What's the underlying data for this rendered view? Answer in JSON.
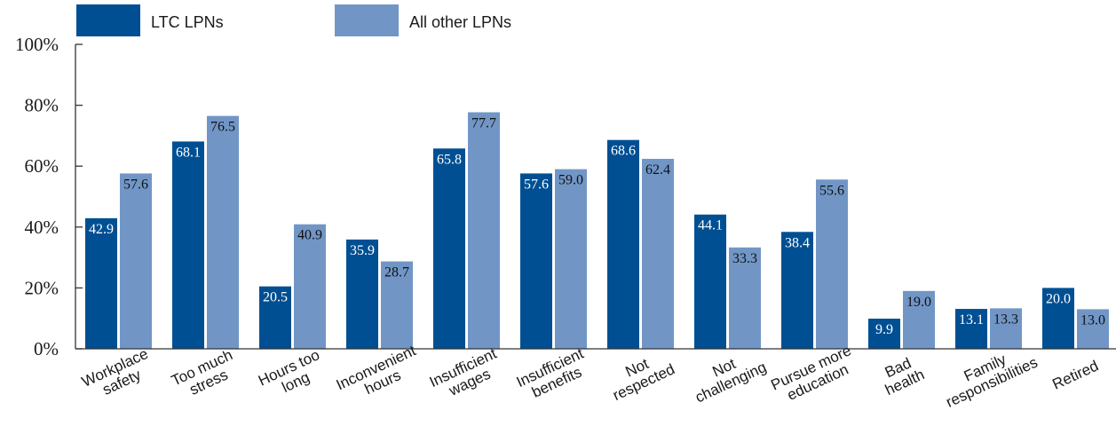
{
  "chart_data": {
    "type": "bar",
    "categories": [
      [
        "Workplace",
        "safety"
      ],
      [
        "Too much",
        "stress"
      ],
      [
        "Hours too",
        "long"
      ],
      [
        "Inconvenient",
        "hours"
      ],
      [
        "Insufficient",
        "wages"
      ],
      [
        "Insufficient",
        "benefits"
      ],
      [
        "Not",
        "respected"
      ],
      [
        "Not",
        "challenging"
      ],
      [
        "Pursue more",
        "education"
      ],
      [
        "Bad",
        "health"
      ],
      [
        "Family",
        "responsibilities"
      ],
      [
        "Retired"
      ]
    ],
    "series": [
      {
        "name": "LTC LPNs",
        "color": "#004f93",
        "values": [
          42.9,
          68.1,
          20.5,
          35.9,
          65.8,
          57.6,
          68.6,
          44.1,
          38.4,
          9.9,
          13.1,
          20.0
        ],
        "labels": [
          "42.9",
          "68.1",
          "20.5",
          "35.9",
          "65.8",
          "57.6",
          "68.6",
          "44.1",
          "38.4",
          "9.9",
          "13.1",
          "20.0"
        ]
      },
      {
        "name": "All other LPNs",
        "color": "#7196c6",
        "values": [
          57.6,
          76.5,
          40.9,
          28.7,
          77.7,
          59.0,
          62.4,
          33.3,
          55.6,
          19.0,
          13.3,
          13.0
        ],
        "labels": [
          "57.6",
          "76.5",
          "40.9",
          "28.7",
          "77.7",
          "59.0",
          "62.4",
          "33.3",
          "55.6",
          "19.0",
          "13.3",
          "13.0"
        ]
      }
    ],
    "yticks": [
      "0%",
      "20%",
      "40%",
      "60%",
      "80%",
      "100%"
    ],
    "ylim": [
      0,
      100
    ],
    "grid": false,
    "legend_position": "top-left"
  }
}
